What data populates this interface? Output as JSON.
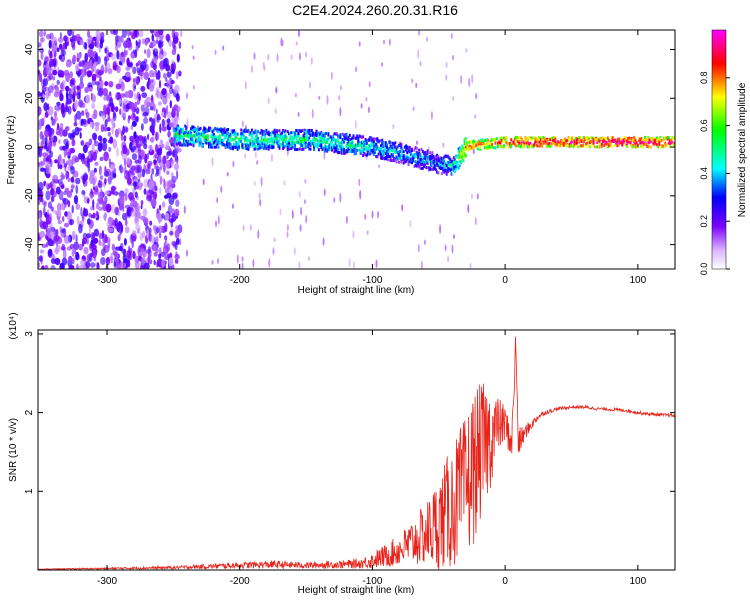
{
  "title": "C2E4.2024.260.20.31.R16",
  "chart_data": [
    {
      "type": "heatmap",
      "xlabel": "Height of straight line (km)",
      "ylabel": "Frequency (Hz)",
      "xlim": [
        -352,
        128
      ],
      "ylim": [
        -50,
        48
      ],
      "xticks": [
        -300,
        -200,
        -100,
        0,
        100
      ],
      "yticks": [
        -40,
        -20,
        0,
        20,
        40
      ],
      "colorbar": {
        "label": "Normalized spectral amplitude",
        "range": [
          0,
          1
        ],
        "ticks": [
          "0.0",
          "0.2",
          "0.4",
          "0.6",
          "0.8"
        ],
        "colors": [
          "#ffffff",
          "#7b00ff",
          "#0000ff",
          "#00ffff",
          "#00ff00",
          "#ffff00",
          "#ff0000",
          "#ff00ff"
        ]
      },
      "ridge": {
        "x": [
          -250,
          -200,
          -150,
          -100,
          -75,
          -50,
          -40,
          -30,
          -20,
          0,
          20,
          50,
          90,
          128
        ],
        "center_freq": [
          5,
          3,
          3,
          0,
          -3,
          -7,
          -8,
          0,
          1,
          2,
          2,
          2,
          2,
          2
        ],
        "normalized_amplitude": [
          0.5,
          0.5,
          0.5,
          0.45,
          0.4,
          0.35,
          0.45,
          0.8,
          0.8,
          0.85,
          0.9,
          0.9,
          0.95,
          0.9
        ]
      }
    },
    {
      "type": "line",
      "xlabel": "Height of straight line (km)",
      "ylabel": "SNR (10 * v/v)",
      "y_multiplier": "(x10⁴)",
      "xlim": [
        -352,
        128
      ],
      "ylim": [
        0,
        3.05
      ],
      "xticks": [
        -300,
        -200,
        -100,
        0,
        100
      ],
      "yticks": [
        1,
        2,
        3
      ],
      "color": "#e8231a",
      "series": [
        {
          "x": [
            -352,
            -300,
            -250,
            -200,
            -175,
            -150,
            -125,
            -110,
            -100,
            -90,
            -80,
            -70,
            -60,
            -50,
            -40,
            -30,
            -25,
            -20,
            -15,
            -10,
            -5,
            0,
            5,
            8,
            10,
            15,
            20,
            25,
            30,
            40,
            50,
            60,
            70,
            80,
            90,
            100,
            110,
            120,
            128
          ],
          "y": [
            0.01,
            0.02,
            0.03,
            0.06,
            0.07,
            0.06,
            0.07,
            0.08,
            0.12,
            0.18,
            0.25,
            0.35,
            0.45,
            0.6,
            0.8,
            1.05,
            1.25,
            1.45,
            1.6,
            1.7,
            1.85,
            1.85,
            1.6,
            2.9,
            1.6,
            1.75,
            1.85,
            1.95,
            2.0,
            2.05,
            2.07,
            2.07,
            2.05,
            2.04,
            2.03,
            2.0,
            1.98,
            1.97,
            1.96
          ],
          "spread": [
            0.005,
            0.01,
            0.02,
            0.04,
            0.05,
            0.04,
            0.05,
            0.06,
            0.1,
            0.15,
            0.2,
            0.3,
            0.4,
            0.6,
            0.8,
            0.9,
            1.0,
            0.9,
            0.8,
            0.6,
            0.35,
            0.25,
            0.2,
            0.2,
            0.2,
            0.1,
            0.06,
            0.04,
            0.03,
            0.02,
            0.02,
            0.02,
            0.02,
            0.02,
            0.02,
            0.02,
            0.02,
            0.02,
            0.02
          ]
        }
      ]
    }
  ]
}
